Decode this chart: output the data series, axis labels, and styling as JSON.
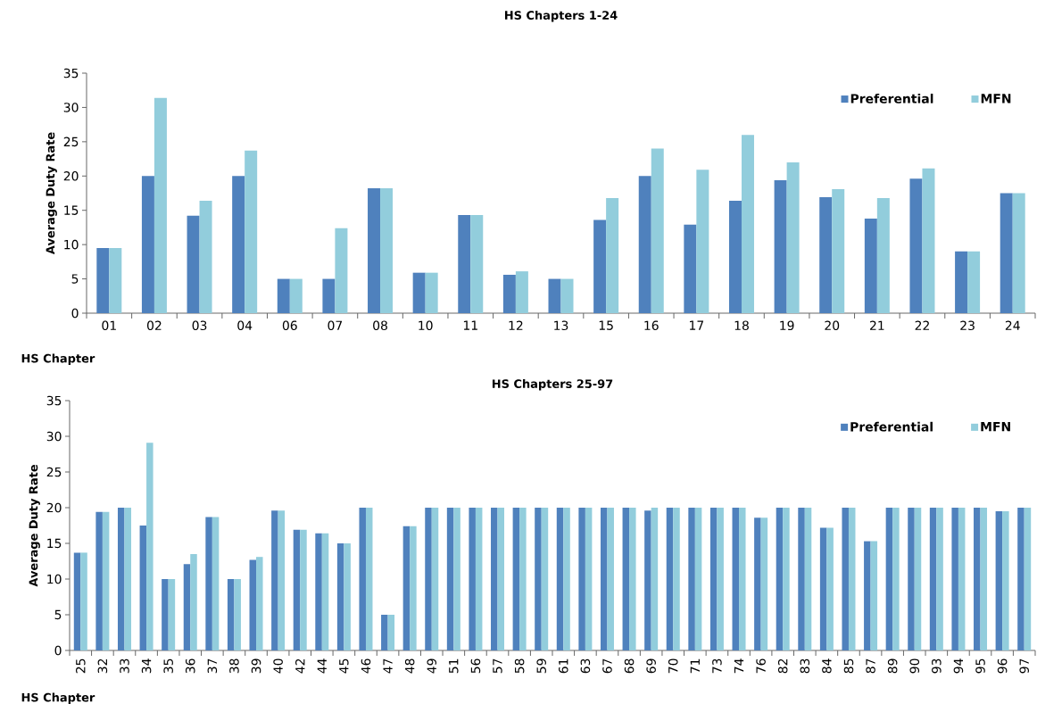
{
  "chart_data": [
    {
      "type": "bar",
      "title": "HS Chapters 1-24",
      "xlabel": "HS Chapter",
      "ylabel": "Average Duty Rate",
      "categories": [
        "01",
        "02",
        "03",
        "04",
        "06",
        "07",
        "08",
        "10",
        "11",
        "12",
        "13",
        "15",
        "16",
        "17",
        "18",
        "19",
        "20",
        "21",
        "22",
        "23",
        "24"
      ],
      "series": [
        {
          "name": "Preferential",
          "color": "#4f81bd",
          "values": [
            9.5,
            20,
            14.2,
            20,
            5,
            5,
            18.2,
            5.9,
            14.3,
            5.6,
            5,
            13.6,
            20,
            12.9,
            16.4,
            19.4,
            16.9,
            13.8,
            19.6,
            9.0,
            17.5
          ]
        },
        {
          "name": "MFN",
          "color": "#92cddc",
          "values": [
            9.5,
            31.4,
            16.4,
            23.7,
            5,
            12.4,
            18.2,
            5.9,
            14.3,
            6.1,
            5,
            16.8,
            24.0,
            20.9,
            26.0,
            22.0,
            18.1,
            16.8,
            21.1,
            9.0,
            17.5
          ]
        }
      ],
      "ylim": [
        0,
        35
      ],
      "yticks": [
        0,
        5,
        10,
        15,
        20,
        25,
        30,
        35
      ],
      "legend": "top right"
    },
    {
      "type": "bar",
      "title": "HS Chapters 25-97",
      "xlabel": "HS Chapter",
      "ylabel": "Average Duty Rate",
      "categories": [
        "25",
        "32",
        "33",
        "34",
        "35",
        "36",
        "37",
        "38",
        "39",
        "40",
        "42",
        "44",
        "45",
        "46",
        "47",
        "48",
        "49",
        "51",
        "56",
        "57",
        "58",
        "59",
        "61",
        "63",
        "67",
        "68",
        "69",
        "70",
        "71",
        "73",
        "74",
        "76",
        "82",
        "83",
        "84",
        "85",
        "87",
        "89",
        "90",
        "93",
        "94",
        "95",
        "96",
        "97"
      ],
      "series": [
        {
          "name": "Preferential",
          "color": "#4f81bd",
          "values": [
            13.7,
            19.4,
            20,
            17.5,
            10,
            12.1,
            18.7,
            10,
            12.7,
            19.6,
            16.9,
            16.4,
            15,
            20,
            5,
            17.4,
            20,
            20,
            20,
            20,
            20,
            20,
            20,
            20,
            20,
            20,
            19.6,
            20,
            20,
            20,
            20,
            18.6,
            20,
            20,
            17.2,
            20,
            15.3,
            20,
            20,
            20,
            20,
            20,
            19.5,
            20
          ]
        },
        {
          "name": "MFN",
          "color": "#92cddc",
          "values": [
            13.7,
            19.4,
            20,
            29.1,
            10,
            13.5,
            18.7,
            10,
            13.1,
            19.6,
            16.9,
            16.4,
            15,
            20,
            5,
            17.4,
            20,
            20,
            20,
            20,
            20,
            20,
            20,
            20,
            20,
            20,
            20,
            20,
            20,
            20,
            20,
            18.6,
            20,
            20,
            17.2,
            20,
            15.3,
            20,
            20,
            20,
            20,
            20,
            19.5,
            20
          ]
        }
      ],
      "ylim": [
        0,
        35
      ],
      "yticks": [
        0,
        5,
        10,
        15,
        20,
        25,
        30,
        35
      ],
      "legend": "top right"
    }
  ]
}
